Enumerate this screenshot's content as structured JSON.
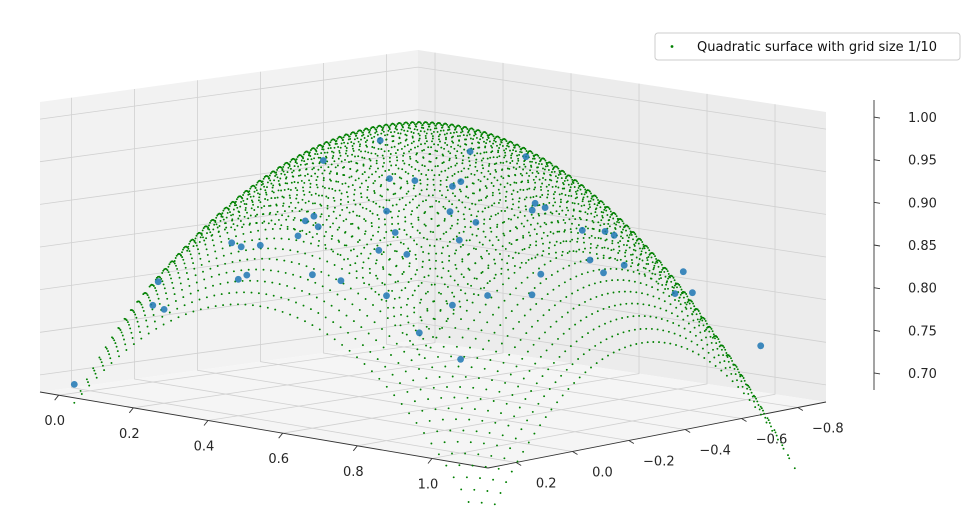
{
  "chart_data": {
    "type": "scatter",
    "projection": "3d",
    "legend": {
      "placement": "top-right",
      "entries": [
        {
          "label": "Quadratic surface with grid size 1/10",
          "color": "#008000",
          "marker": "dot"
        }
      ]
    },
    "xlim": [
      -0.05,
      1.15
    ],
    "ylim": [
      -0.9,
      0.3
    ],
    "zlim": [
      0.68,
      1.02
    ],
    "x_ticks": [
      "0.0",
      "0.2",
      "0.4",
      "0.6",
      "0.8",
      "1.0"
    ],
    "y_ticks": [
      "−0.8",
      "−0.6",
      "−0.4",
      "−0.2",
      "0.0",
      "0.2"
    ],
    "z_ticks": [
      "0.70",
      "0.75",
      "0.80",
      "0.85",
      "0.90",
      "0.95",
      "1.00"
    ],
    "grid": true,
    "series": [
      {
        "kind": "surface-samples",
        "color": "#008000",
        "marker_size": "small",
        "surface": "z = 1 - 0.3*((x-0.5)^2 + (y+0.3)^2) / 0.5",
        "x_range": [
          0.0,
          1.1
        ],
        "y_range": [
          -0.85,
          0.25
        ],
        "grid_size": 0.1,
        "samples_per_axis": 56
      },
      {
        "kind": "observations",
        "color": "#1f77b4",
        "marker_size": "medium",
        "points": [
          [
            0.0,
            -0.85,
            0.694
          ],
          [
            0.0,
            -0.6,
            0.768
          ],
          [
            0.0,
            -0.3,
            0.79
          ],
          [
            0.0,
            0.0,
            0.77
          ],
          [
            0.0,
            0.25,
            0.69
          ],
          [
            0.2,
            -0.85,
            0.75
          ],
          [
            0.2,
            -0.55,
            0.84
          ],
          [
            0.2,
            -0.3,
            0.86
          ],
          [
            0.2,
            -0.05,
            0.85
          ],
          [
            0.2,
            0.2,
            0.79
          ],
          [
            0.4,
            -0.8,
            0.79
          ],
          [
            0.4,
            -0.5,
            0.88
          ],
          [
            0.4,
            -0.3,
            0.93
          ],
          [
            0.4,
            -0.05,
            0.9
          ],
          [
            0.4,
            0.2,
            0.84
          ],
          [
            0.6,
            -0.85,
            0.81
          ],
          [
            0.6,
            -0.55,
            0.9
          ],
          [
            0.6,
            -0.3,
            0.94
          ],
          [
            0.6,
            -0.05,
            0.92
          ],
          [
            0.6,
            0.2,
            0.86
          ],
          [
            0.8,
            -0.85,
            0.79
          ],
          [
            0.8,
            -0.55,
            0.88
          ],
          [
            0.8,
            -0.3,
            0.92
          ],
          [
            0.8,
            -0.05,
            0.9
          ],
          [
            0.8,
            0.2,
            0.85
          ],
          [
            1.0,
            -0.85,
            0.74
          ],
          [
            1.0,
            -0.55,
            0.82
          ],
          [
            1.0,
            -0.3,
            0.86
          ],
          [
            1.0,
            -0.05,
            0.85
          ],
          [
            1.0,
            0.2,
            0.79
          ],
          [
            0.1,
            -0.7,
            0.8
          ],
          [
            0.3,
            -0.7,
            0.85
          ],
          [
            0.5,
            -0.7,
            0.88
          ],
          [
            0.7,
            -0.7,
            0.86
          ],
          [
            0.9,
            -0.7,
            0.83
          ],
          [
            0.1,
            0.1,
            0.81
          ],
          [
            0.3,
            0.1,
            0.87
          ],
          [
            0.5,
            0.1,
            0.91
          ],
          [
            0.7,
            0.1,
            0.89
          ],
          [
            0.9,
            0.1,
            0.84
          ],
          [
            0.5,
            -0.15,
            0.99
          ],
          [
            0.3,
            -0.2,
            0.95
          ],
          [
            0.7,
            -0.4,
            0.97
          ],
          [
            0.5,
            -0.45,
            0.96
          ],
          [
            0.3,
            -0.5,
            0.91
          ],
          [
            0.7,
            -0.15,
            0.95
          ],
          [
            0.9,
            -0.35,
            0.9
          ],
          [
            0.1,
            -0.35,
            0.84
          ],
          [
            0.5,
            0.25,
            0.89
          ],
          [
            0.5,
            -0.85,
            0.81
          ]
        ]
      }
    ]
  }
}
